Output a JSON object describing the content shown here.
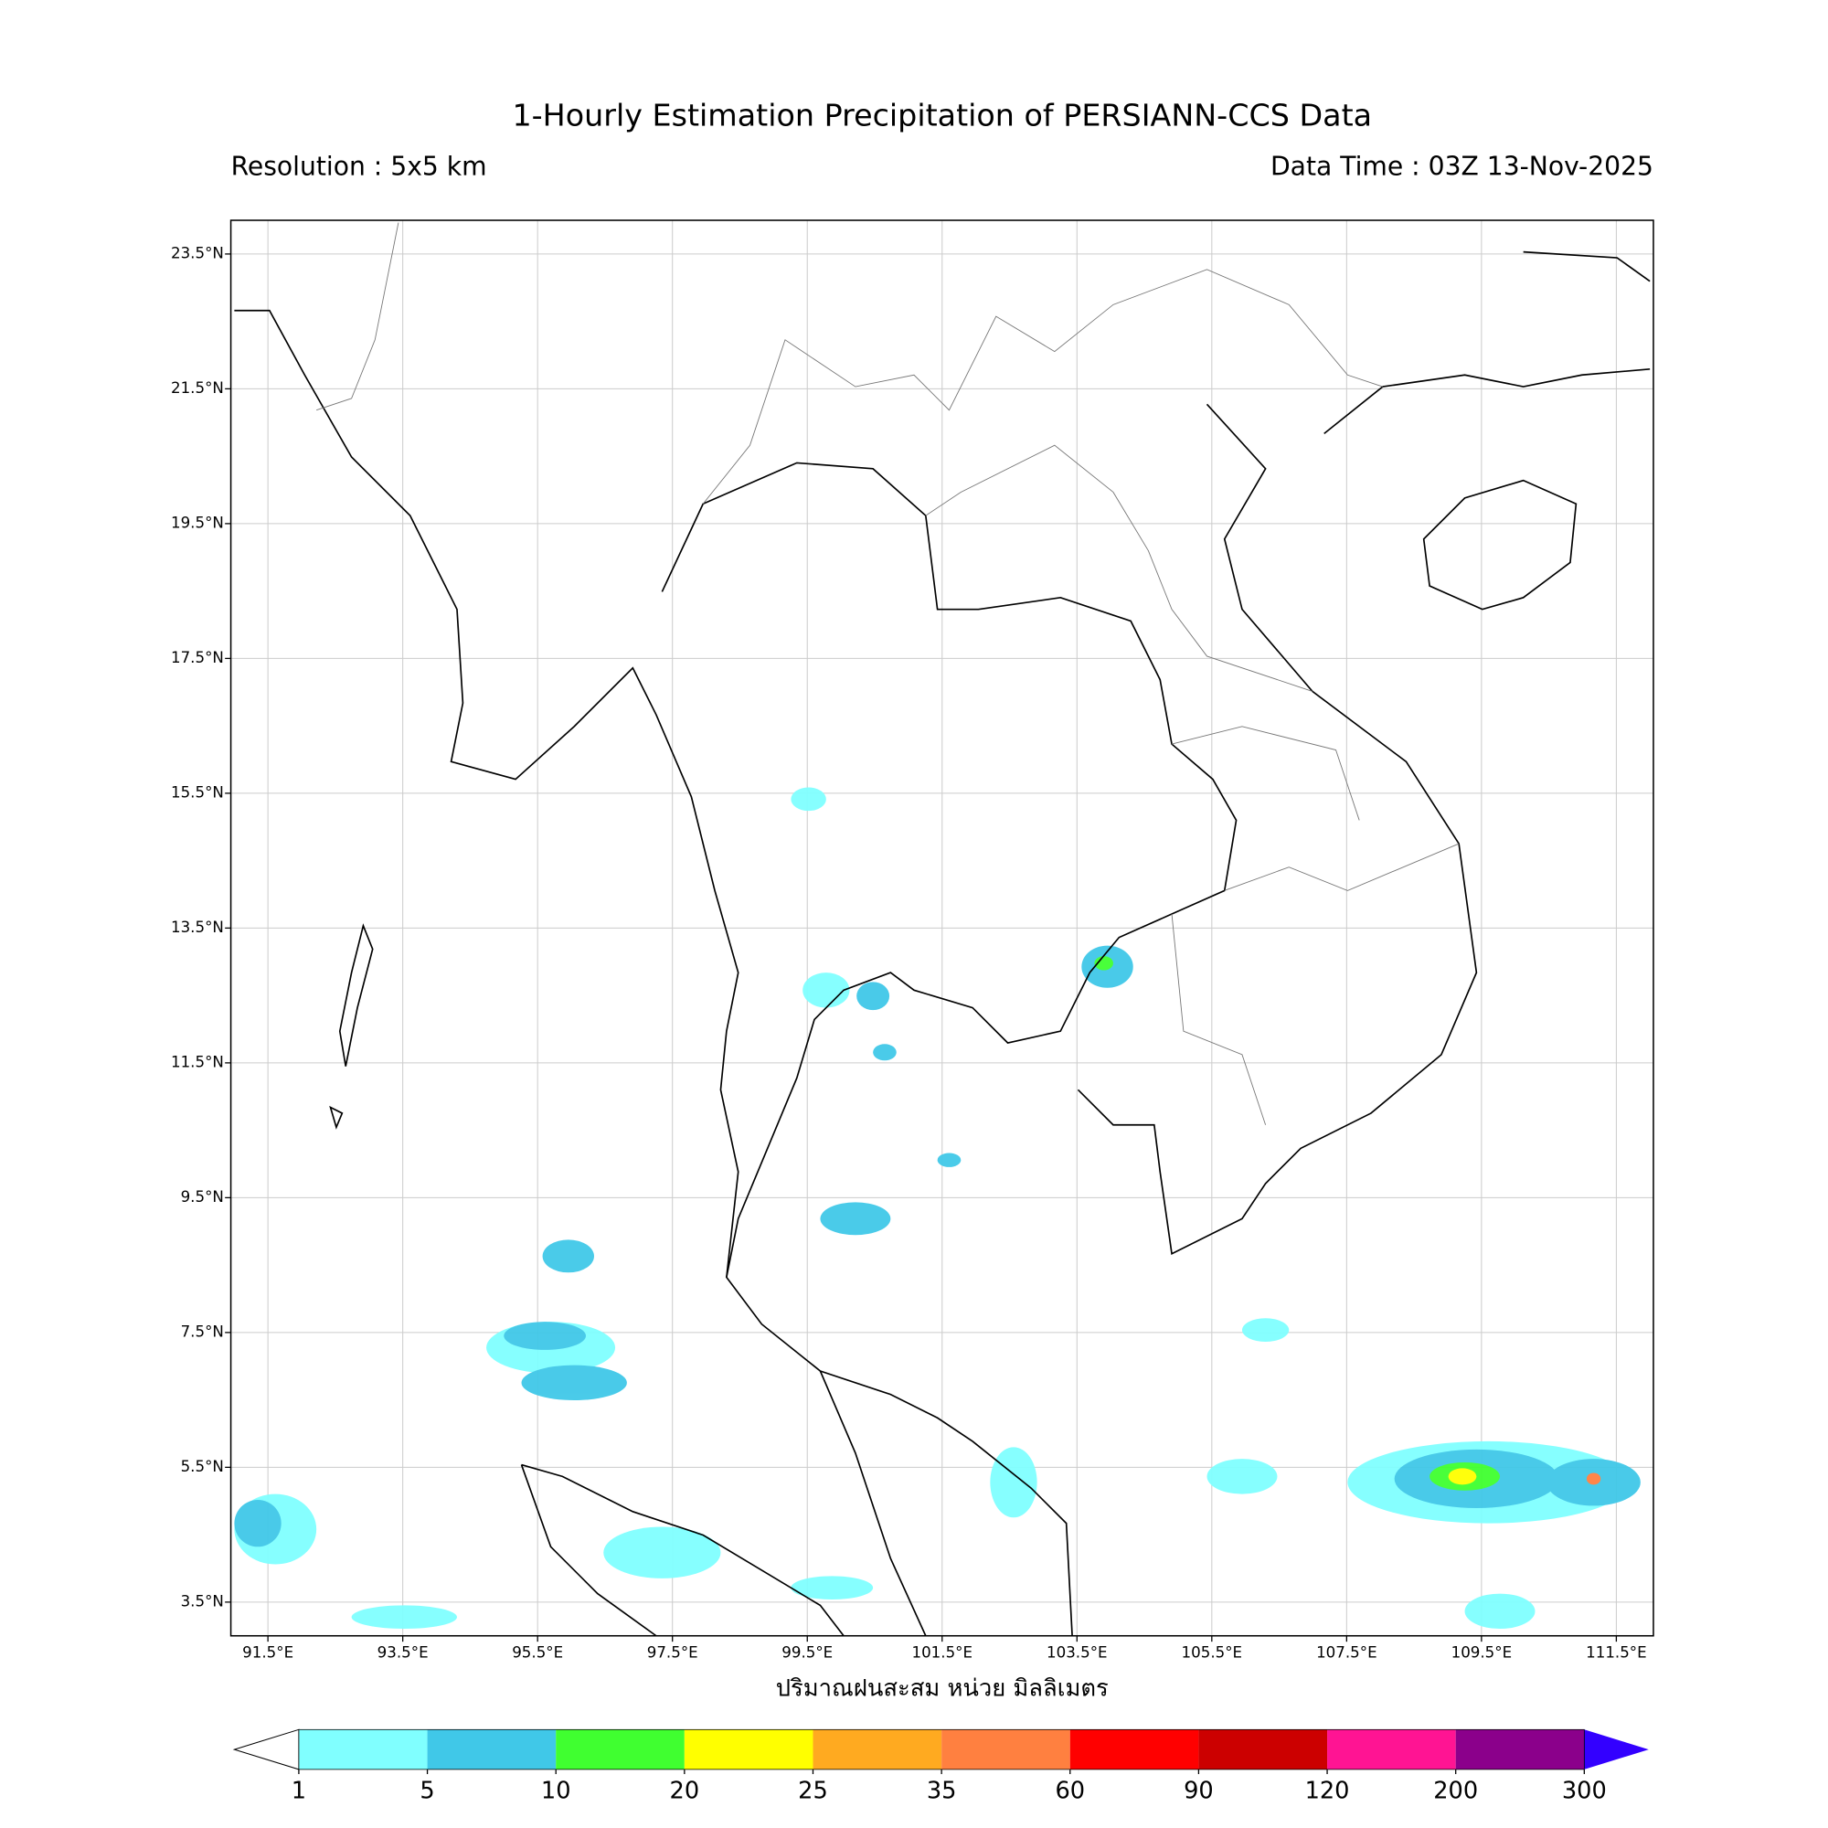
{
  "title": "1-Hourly Estimation Precipitation of PERSIANN-CCS Data",
  "resolution": "Resolution : 5x5 km",
  "data_time": "Data Time : 03Z 13-Nov-2025",
  "map": {
    "xlim": [
      90.95,
      112.05
    ],
    "ylim": [
      3,
      24
    ],
    "grid": true,
    "xticks": [
      {
        "value": 91.5,
        "label": "91.5°E"
      },
      {
        "value": 93.5,
        "label": "93.5°E"
      },
      {
        "value": 95.5,
        "label": "95.5°E"
      },
      {
        "value": 97.5,
        "label": "97.5°E"
      },
      {
        "value": 99.5,
        "label": "99.5°E"
      },
      {
        "value": 101.5,
        "label": "101.5°E"
      },
      {
        "value": 103.5,
        "label": "103.5°E"
      },
      {
        "value": 105.5,
        "label": "105.5°E"
      },
      {
        "value": 107.5,
        "label": "107.5°E"
      },
      {
        "value": 109.5,
        "label": "109.5°E"
      },
      {
        "value": 111.5,
        "label": "111.5°E"
      }
    ],
    "yticks": [
      {
        "value": 23.5,
        "label": "23.5°N"
      },
      {
        "value": 21.5,
        "label": "21.5°N"
      },
      {
        "value": 19.5,
        "label": "19.5°N"
      },
      {
        "value": 17.5,
        "label": "17.5°N"
      },
      {
        "value": 15.5,
        "label": "15.5°N"
      },
      {
        "value": 13.5,
        "label": "13.5°N"
      },
      {
        "value": 11.5,
        "label": "11.5°N"
      },
      {
        "value": 9.5,
        "label": "9.5°N"
      },
      {
        "value": 7.5,
        "label": "7.5°N"
      },
      {
        "value": 5.5,
        "label": "5.5°N"
      },
      {
        "value": 3.5,
        "label": "3.5°N"
      }
    ],
    "xlabel": "ปริมาณฝนสะสม หน่วย มิลลิเมตร"
  },
  "colorbar": {
    "levels": [
      1,
      5,
      10,
      20,
      25,
      35,
      60,
      90,
      120,
      200,
      300
    ],
    "colors": [
      "#80ffff",
      "#40c8e8",
      "#40ff30",
      "#ffff00",
      "#ffaa20",
      "#ff8040",
      "#ff0000",
      "#cc0000",
      "#ff1493",
      "#8b008b"
    ],
    "under_color": "#ffffff",
    "over_color": "#3300ff"
  }
}
